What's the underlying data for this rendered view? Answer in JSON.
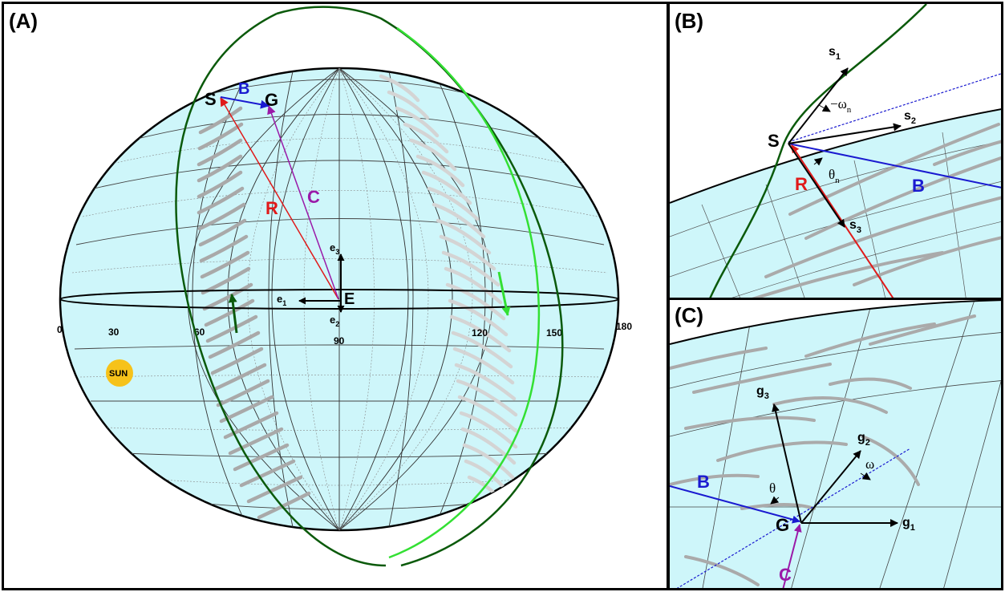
{
  "panels": {
    "a": {
      "label": "(A)",
      "labels": {
        "S": "S",
        "G": "G",
        "B": "B",
        "C": "C",
        "R": "R",
        "E": "E",
        "sun": "SUN"
      },
      "axes": {
        "e1": "e",
        "e1_sub": "1",
        "e2": "e",
        "e2_sub": "2",
        "e3": "e",
        "e3_sub": "3"
      },
      "ticks": [
        "0",
        "30",
        "60",
        "90",
        "120",
        "150",
        "180"
      ]
    },
    "b": {
      "label": "(B)",
      "labels": {
        "S": "S",
        "R": "R",
        "B": "B"
      },
      "s1": "s",
      "s1_sub": "1",
      "s2": "s",
      "s2_sub": "2",
      "s3": "s",
      "s3_sub": "3",
      "omega_n": "−ω",
      "omega_n_sub": "n",
      "theta_n": "θ",
      "theta_n_sub": "n"
    },
    "c": {
      "label": "(C)",
      "labels": {
        "G": "G",
        "B": "B",
        "C": "C"
      },
      "g1": "g",
      "g1_sub": "1",
      "g2": "g",
      "g2_sub": "2",
      "g3": "g",
      "g3_sub": "3",
      "omega": "ω",
      "theta": "θ"
    }
  },
  "colors": {
    "globe": "#cef6fa",
    "red": "#e01a1a",
    "blue": "#1a1ad0",
    "purple": "#9a1aa8",
    "dark_green": "#0b5a0b",
    "light_green": "#33e033",
    "sun": "#f6c21a",
    "arcs": "#a9a9a9"
  }
}
